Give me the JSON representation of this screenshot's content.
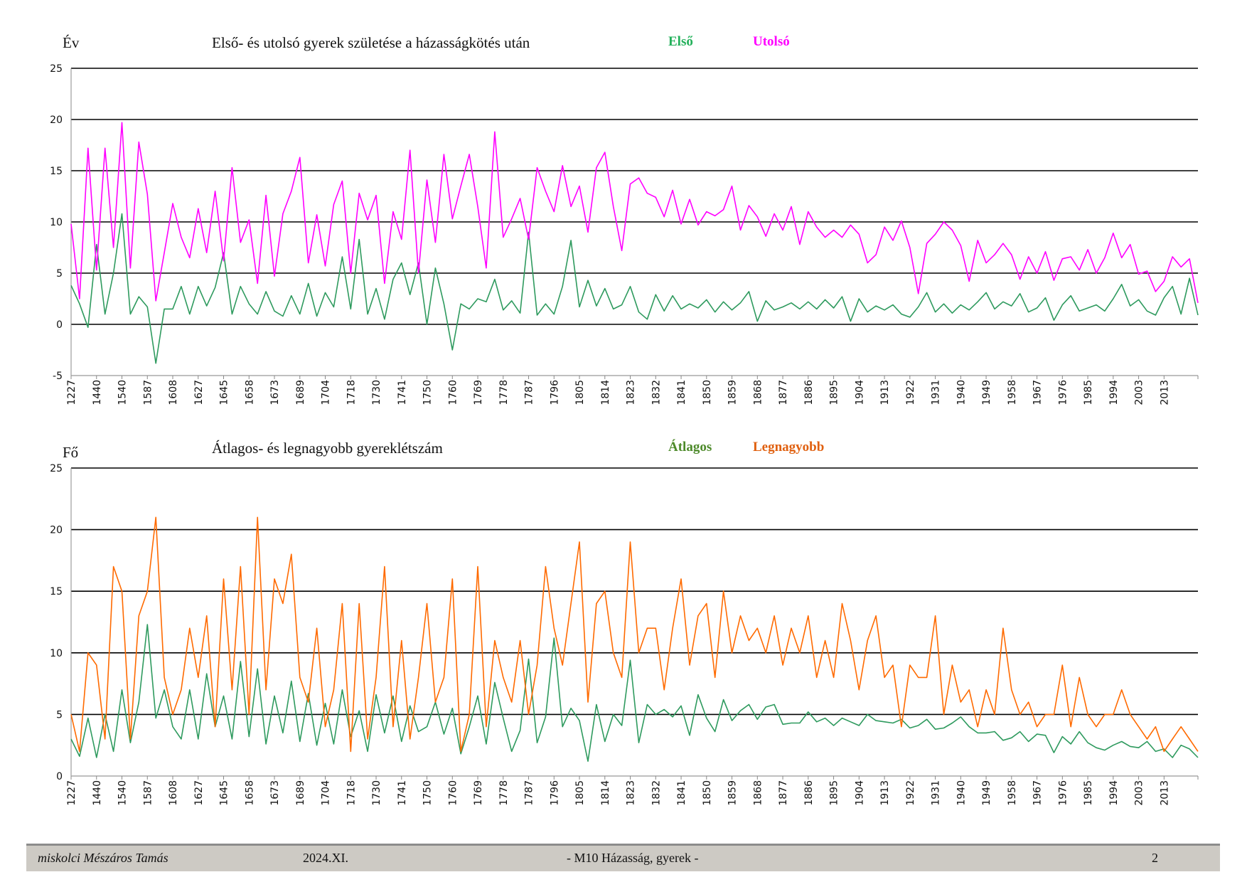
{
  "chart_data": [
    {
      "type": "line",
      "ylabel": "Év",
      "title": "Első- és utolsó gyerek születése a házasságkötés után",
      "ylim": [
        -5,
        25
      ],
      "yticks": [
        -5,
        0,
        5,
        10,
        15,
        20,
        25
      ],
      "grid": true,
      "legend_placement": "top-center",
      "xtick_labels": [
        "1227",
        "1440",
        "1540",
        "1587",
        "1608",
        "1627",
        "1645",
        "1658",
        "1673",
        "1689",
        "1704",
        "1718",
        "1730",
        "1741",
        "1750",
        "1760",
        "1769",
        "1778",
        "1787",
        "1796",
        "1805",
        "1814",
        "1823",
        "1832",
        "1841",
        "1850",
        "1859",
        "1868",
        "1877",
        "1886",
        "1895",
        "1904",
        "1913",
        "1922",
        "1931",
        "1940",
        "1949",
        "1958",
        "1967",
        "1976",
        "1985",
        "1994",
        "2003",
        "2013"
      ],
      "series": [
        {
          "name": "Első",
          "color": "#2e9a5e",
          "legend_color": "#22b05a",
          "values": [
            3.8,
            2,
            -0.3,
            7.8,
            1,
            5,
            10.8,
            1,
            2.7,
            1.7,
            -3.8,
            1.5,
            1.5,
            3.7,
            1,
            3.7,
            1.8,
            3.6,
            7,
            1,
            3.7,
            2,
            1,
            3.2,
            1.3,
            0.8,
            2.8,
            1,
            4,
            0.8,
            3.1,
            1.7,
            6.6,
            1.5,
            8.3,
            1,
            3.5,
            0.5,
            4.4,
            6,
            2.9,
            6,
            0,
            5.5,
            2,
            -2.5,
            2,
            1.5,
            2.5,
            2.2,
            4.4,
            1.4,
            2.3,
            1.1,
            9,
            0.9,
            2,
            1,
            3.7,
            8.2,
            1.7,
            4.3,
            1.8,
            3.5,
            1.5,
            1.9,
            3.7,
            1.2,
            0.5,
            2.9,
            1.3,
            2.8,
            1.5,
            2,
            1.6,
            2.4,
            1.2,
            2.2,
            1.4,
            2.1,
            3.2,
            0.3,
            2.3,
            1.4,
            1.7,
            2.1,
            1.5,
            2.2,
            1.5,
            2.4,
            1.6,
            2.7,
            0.3,
            2.5,
            1.2,
            1.8,
            1.4,
            1.9,
            1,
            0.7,
            1.7,
            3.1,
            1.2,
            2,
            1.1,
            1.9,
            1.4,
            2.2,
            3.1,
            1.5,
            2.2,
            1.8,
            3,
            1.2,
            1.6,
            2.6,
            0.4,
            1.9,
            2.8,
            1.3,
            1.6,
            1.9,
            1.3,
            2.5,
            3.9,
            1.8,
            2.4,
            1.3,
            0.9,
            2.6,
            3.7,
            1,
            4.5,
            0.9
          ]
        },
        {
          "name": "Utolsó",
          "color": "#ff00ff",
          "legend_color": "#ff00ff",
          "values": [
            9.8,
            2.5,
            17.2,
            5.3,
            17.2,
            7.5,
            19.7,
            5.5,
            17.8,
            12.7,
            2.3,
            7,
            11.8,
            8.5,
            6.5,
            11.3,
            7,
            13,
            6.2,
            15.3,
            8,
            10.2,
            4,
            12.6,
            4.7,
            10.8,
            13,
            16.3,
            6,
            10.7,
            5.7,
            11.7,
            14,
            5,
            12.8,
            10.2,
            12.6,
            4,
            11,
            8.3,
            17,
            5,
            14.1,
            8,
            16.6,
            10.3,
            13.5,
            16.6,
            11.5,
            5.5,
            18.8,
            8.5,
            10.3,
            12.3,
            8.3,
            15.3,
            13,
            11,
            15.5,
            11.5,
            13.5,
            9,
            15.3,
            16.8,
            11.5,
            7.2,
            13.7,
            14.3,
            12.8,
            12.4,
            10.5,
            13.1,
            9.8,
            12.2,
            9.7,
            11,
            10.6,
            11.2,
            13.5,
            9.2,
            11.6,
            10.5,
            8.6,
            10.8,
            9.2,
            11.5,
            7.8,
            11,
            9.5,
            8.5,
            9.2,
            8.5,
            9.7,
            8.8,
            6,
            6.8,
            9.5,
            8.2,
            10.1,
            7.5,
            3,
            7.9,
            8.8,
            10,
            9.2,
            7.7,
            4.2,
            8.2,
            6,
            6.8,
            7.9,
            6.8,
            4.4,
            6.6,
            5,
            7.1,
            4.3,
            6.4,
            6.6,
            5.3,
            7.3,
            5,
            6.5,
            8.9,
            6.5,
            7.8,
            4.9,
            5.2,
            3.2,
            4.2,
            6.6,
            5.6,
            6.4,
            2.1
          ]
        }
      ]
    },
    {
      "type": "line",
      "ylabel": "Fő",
      "title": "Átlagos- és legnagyobb gyereklétszám",
      "ylim": [
        0,
        25
      ],
      "yticks": [
        0,
        5,
        10,
        15,
        20,
        25
      ],
      "grid": true,
      "legend_placement": "top-center",
      "xtick_labels": [
        "1227",
        "1440",
        "1540",
        "1587",
        "1608",
        "1627",
        "1645",
        "1658",
        "1673",
        "1689",
        "1704",
        "1718",
        "1730",
        "1741",
        "1750",
        "1760",
        "1769",
        "1778",
        "1787",
        "1796",
        "1805",
        "1814",
        "1823",
        "1832",
        "1841",
        "1850",
        "1859",
        "1868",
        "1877",
        "1886",
        "1895",
        "1904",
        "1913",
        "1922",
        "1931",
        "1940",
        "1949",
        "1958",
        "1967",
        "1976",
        "1985",
        "1994",
        "2003",
        "2013"
      ],
      "series": [
        {
          "name": "Átlagos",
          "color": "#2e9a5e",
          "legend_color": "#4d8a2a",
          "values": [
            3,
            1.6,
            4.7,
            1.5,
            5,
            2,
            7,
            2.7,
            6,
            12.3,
            4.7,
            7,
            4,
            3,
            7,
            3,
            8.3,
            4,
            6.5,
            3,
            9.3,
            3.2,
            8.7,
            2.6,
            6.5,
            3.5,
            7.7,
            2.8,
            6.7,
            2.5,
            5.9,
            2.6,
            7,
            3.2,
            5.3,
            2,
            6.6,
            3.5,
            6.5,
            2.8,
            5.7,
            3.6,
            4,
            6,
            3.4,
            5.5,
            1.8,
            4,
            6.5,
            2.6,
            7.6,
            4.7,
            2,
            3.7,
            9.5,
            2.7,
            4.8,
            11.2,
            4,
            5.5,
            4.5,
            1.2,
            5.8,
            2.8,
            5,
            4.1,
            9.4,
            2.7,
            5.8,
            5,
            5.4,
            4.8,
            5.7,
            3.3,
            6.6,
            4.7,
            3.6,
            6.2,
            4.5,
            5.3,
            5.8,
            4.6,
            5.6,
            5.8,
            4.2,
            4.3,
            4.3,
            5.2,
            4.4,
            4.7,
            4.1,
            4.7,
            4.4,
            4.1,
            5,
            4.5,
            4.4,
            4.3,
            4.6,
            3.9,
            4.1,
            4.6,
            3.8,
            3.9,
            4.3,
            4.8,
            4,
            3.5,
            3.5,
            3.6,
            2.9,
            3.1,
            3.6,
            2.8,
            3.4,
            3.3,
            1.9,
            3.2,
            2.6,
            3.6,
            2.7,
            2.3,
            2.1,
            2.5,
            2.8,
            2.4,
            2.3,
            2.8,
            2,
            2.2,
            1.5,
            2.5,
            2.2,
            1.5
          ]
        },
        {
          "name": "Legnagyobb",
          "color": "#ff6a00",
          "legend_color": "#e0600f",
          "values": [
            5,
            2,
            10,
            9,
            3,
            17,
            15,
            3,
            13,
            15,
            21,
            8,
            5,
            7,
            12,
            8,
            13,
            4,
            16,
            7,
            17,
            5,
            21,
            7,
            16,
            14,
            18,
            8,
            6,
            12,
            4,
            7,
            14,
            2,
            14,
            3,
            8,
            17,
            4,
            11,
            3,
            8,
            14,
            6,
            8,
            16,
            2,
            5,
            17,
            4,
            11,
            8,
            6,
            11,
            5,
            9,
            17,
            12,
            9,
            14,
            19,
            6,
            14,
            15,
            10,
            8,
            19,
            10,
            12,
            12,
            7,
            12,
            16,
            9,
            13,
            14,
            8,
            15,
            10,
            13,
            11,
            12,
            10,
            13,
            9,
            12,
            10,
            13,
            8,
            11,
            8,
            14,
            11,
            7,
            11,
            13,
            8,
            9,
            4,
            9,
            8,
            8,
            13,
            5,
            9,
            6,
            7,
            4,
            7,
            5,
            12,
            7,
            5,
            6,
            4,
            5,
            5,
            9,
            4,
            8,
            5,
            4,
            5,
            5,
            7,
            5,
            4,
            3,
            4,
            2,
            3,
            4,
            3,
            2
          ]
        }
      ]
    }
  ],
  "footer": {
    "author": "miskolci Mészáros Tamás",
    "date": "2024.XI.",
    "section": "- M10  Házasság, gyerek -",
    "page": "2"
  }
}
